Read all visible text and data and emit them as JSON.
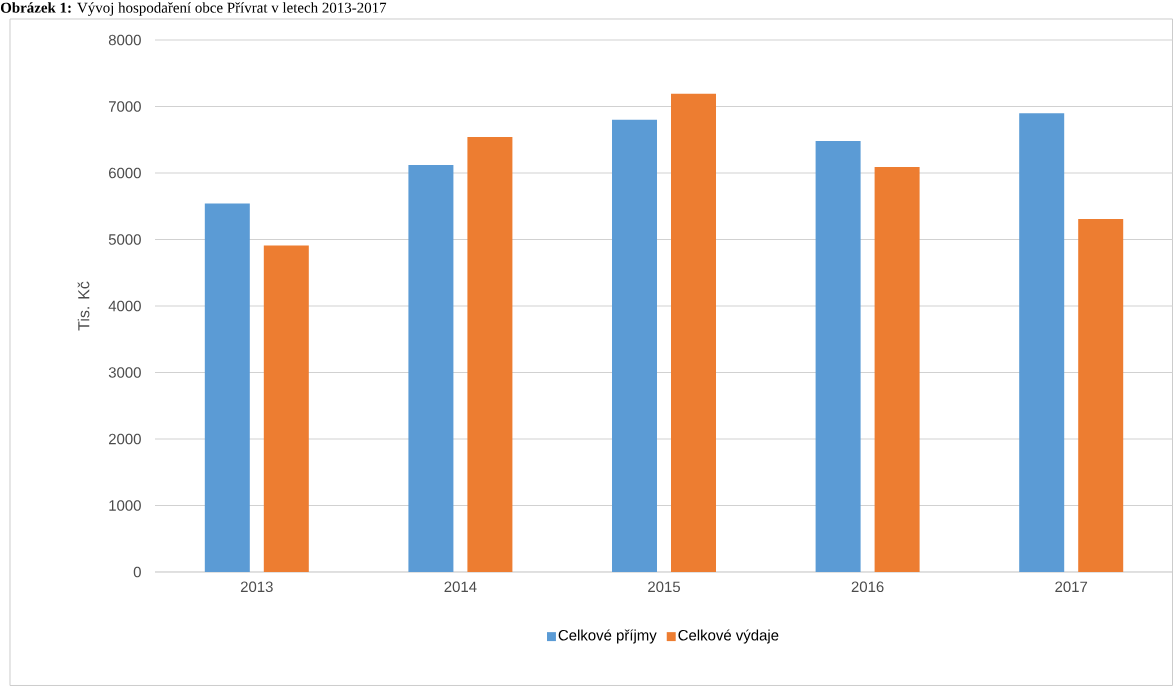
{
  "chart_data": {
    "type": "bar",
    "title": "**Obrázek 1:** Vývoj hospodaření obce Přívrat v letech 2013-2017",
    "ylabel": "Tis. Kč",
    "categories": [
      "2013",
      "2014",
      "2015",
      "2016",
      "2017"
    ],
    "series": [
      {
        "name": "Celkové příjmy",
        "color": "#5b9bd5",
        "values": [
          5540,
          6120,
          6800,
          6480,
          6900
        ]
      },
      {
        "name": "Celkové výdaje",
        "color": "#ed7d31",
        "values": [
          4910,
          6540,
          7190,
          6090,
          5310
        ]
      }
    ],
    "ylim": [
      0,
      8000
    ],
    "yticks": [
      0,
      1000,
      2000,
      3000,
      4000,
      5000,
      6000,
      7000,
      8000
    ],
    "grid": "y",
    "legend": "bottom"
  }
}
